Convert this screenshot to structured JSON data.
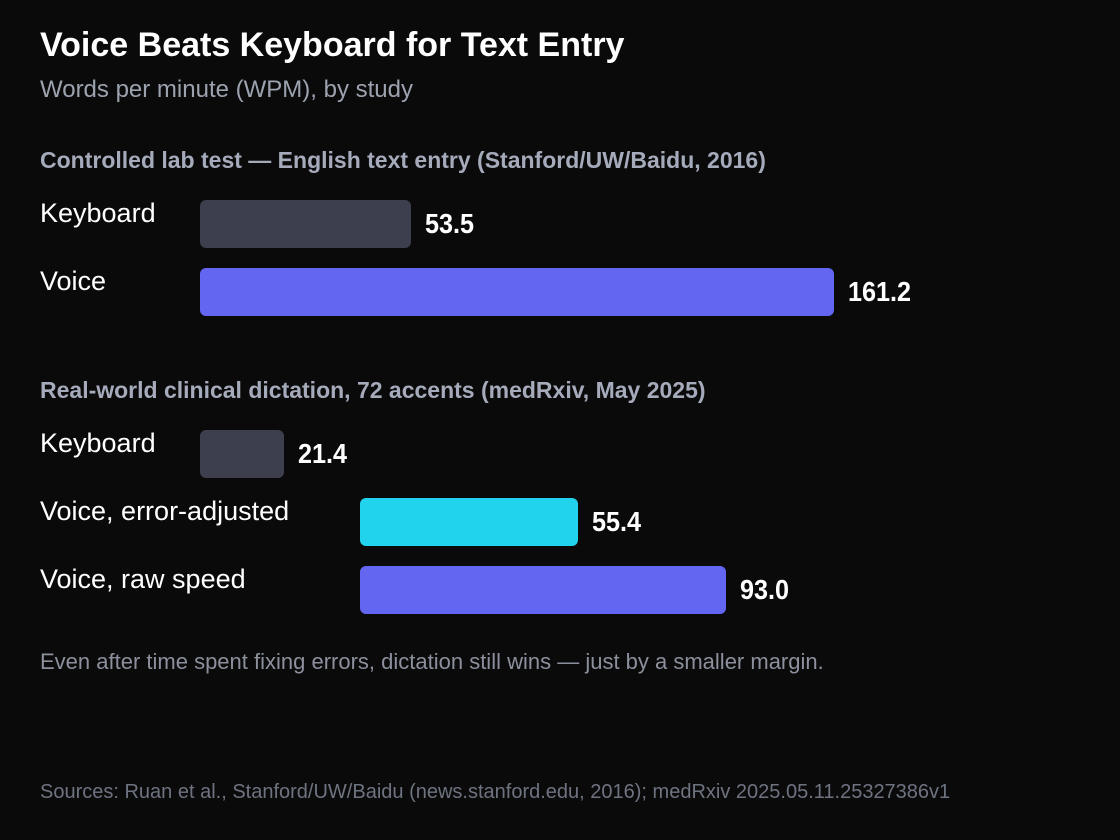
{
  "title": "Voice Beats Keyboard for Text Entry",
  "subtitle": "Words per minute (WPM), by study",
  "colors": {
    "keyboard": "#3d3f4e",
    "voice": "#6366f1",
    "voice_error_adjusted": "#22d3ee"
  },
  "chart_data": [
    {
      "type": "bar",
      "orientation": "horizontal",
      "title": "Controlled lab test — English text entry (Stanford/UW/Baidu, 2016)",
      "categories": [
        "Keyboard",
        "Voice"
      ],
      "values": [
        53.5,
        161.2
      ],
      "value_labels": [
        "53.5",
        "161.2"
      ],
      "series_colors": [
        "#3d3f4e",
        "#6366f1"
      ],
      "bar_start_values": [
        0,
        0
      ]
    },
    {
      "type": "bar",
      "orientation": "horizontal",
      "title": "Real-world clinical dictation, 72 accents (medRxiv, May 2025)",
      "categories": [
        "Keyboard",
        "Voice, error-adjusted",
        "Voice, raw speed"
      ],
      "values": [
        21.4,
        55.4,
        93.0
      ],
      "value_labels": [
        "21.4",
        "55.4",
        "93.0"
      ],
      "series_colors": [
        "#3d3f4e",
        "#22d3ee",
        "#6366f1"
      ],
      "bar_start_values": [
        0,
        40.6,
        40.6
      ]
    }
  ],
  "note": "Even after time spent fixing errors, dictation still wins — just by a smaller margin.",
  "sources": "Sources: Ruan et al., Stanford/UW/Baidu (news.stanford.edu, 2016); medRxiv 2025.05.11.25327386v1"
}
